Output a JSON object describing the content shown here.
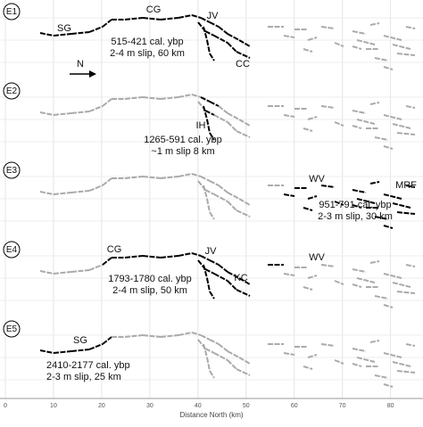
{
  "panels": [
    {
      "label": "E1",
      "annotations": [
        "SG",
        "CG",
        "JV",
        "CC"
      ],
      "age": "515-421 cal. ybp",
      "slip": "2-4 m slip, 60 km"
    },
    {
      "label": "E2",
      "annotations": [
        "IH"
      ],
      "age": "1265-591 cal. ybp",
      "slip": "~1 m slip 8 km"
    },
    {
      "label": "E3",
      "annotations": [
        "WV",
        "MRF"
      ],
      "age": "951-791 cal. ybp",
      "slip": "2-3 m slip, 30 km"
    },
    {
      "label": "E4",
      "annotations": [
        "CG",
        "JV",
        "WV",
        "KC"
      ],
      "age": "1793-1780 cal. ybp",
      "slip": "2-4 m slip, 50 km"
    },
    {
      "label": "E5",
      "annotations": [
        "SG"
      ],
      "age": "2410-2177 cal. ybp",
      "slip": "2-3 m slip, 25 km"
    }
  ],
  "north_arrow": "N",
  "x_axis": {
    "title": "Distance North (km)",
    "xlim": [
      0,
      86
    ],
    "xticks": [
      0,
      10,
      20,
      30,
      40,
      50,
      60,
      70,
      80
    ]
  }
}
